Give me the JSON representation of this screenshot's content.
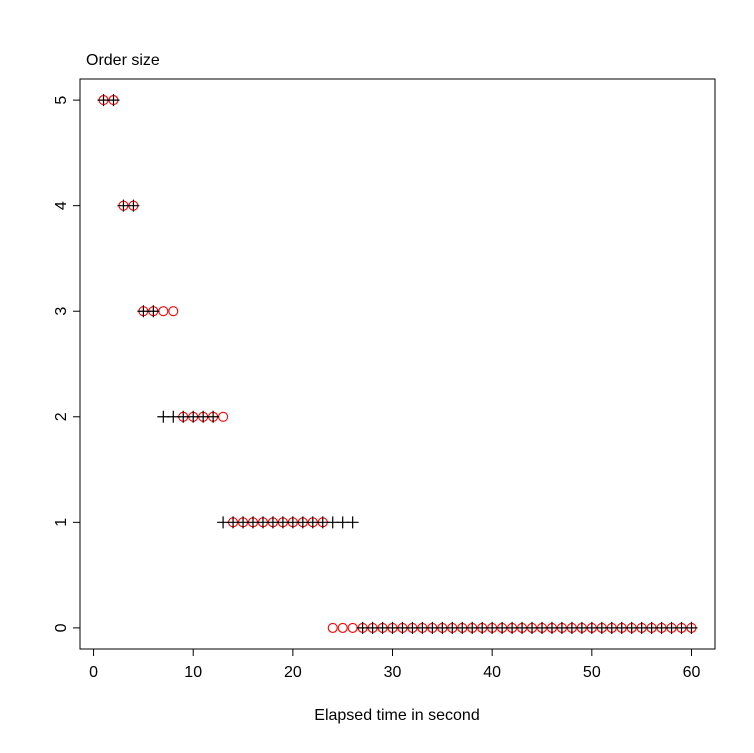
{
  "chart_data": {
    "type": "scatter",
    "title": "Order size",
    "x_label": "Elapsed time in second",
    "x": [
      1,
      2,
      3,
      4,
      5,
      6,
      7,
      8,
      9,
      10,
      11,
      12,
      13,
      14,
      15,
      16,
      17,
      18,
      19,
      20,
      21,
      22,
      23,
      24,
      25,
      26,
      27,
      28,
      29,
      30,
      31,
      32,
      33,
      34,
      35,
      36,
      37,
      38,
      39,
      40,
      41,
      42,
      43,
      44,
      45,
      46,
      47,
      48,
      49,
      50,
      51,
      52,
      53,
      54,
      55,
      56,
      57,
      58,
      59,
      60
    ],
    "series": [
      {
        "color": "#ff0000",
        "marker": "circle",
        "values": [
          5,
          5,
          4,
          4,
          3,
          3,
          3,
          3,
          2,
          2,
          2,
          2,
          2,
          1,
          1,
          1,
          1,
          1,
          1,
          1,
          1,
          1,
          1,
          0,
          0,
          0,
          0,
          0,
          0,
          0,
          0,
          0,
          0,
          0,
          0,
          0,
          0,
          0,
          0,
          0,
          0,
          0,
          0,
          0,
          0,
          0,
          0,
          0,
          0,
          0,
          0,
          0,
          0,
          0,
          0,
          0,
          0,
          0,
          0,
          0
        ]
      },
      {
        "color": "#000000",
        "marker": "plus",
        "values": [
          5,
          5,
          4,
          4,
          3,
          3,
          2,
          2,
          2,
          2,
          2,
          2,
          1,
          1,
          1,
          1,
          1,
          1,
          1,
          1,
          1,
          1,
          1,
          1,
          1,
          1,
          0,
          0,
          0,
          0,
          0,
          0,
          0,
          0,
          0,
          0,
          0,
          0,
          0,
          0,
          0,
          0,
          0,
          0,
          0,
          0,
          0,
          0,
          0,
          0,
          0,
          0,
          0,
          0,
          0,
          0,
          0,
          0,
          0,
          0
        ]
      }
    ],
    "xlim": [
      -1.36,
      62.36
    ],
    "ylim": [
      -0.2,
      5.2
    ],
    "xticks": [
      0,
      10,
      20,
      30,
      40,
      50,
      60
    ],
    "yticks": [
      0,
      1,
      2,
      3,
      4,
      5
    ]
  }
}
